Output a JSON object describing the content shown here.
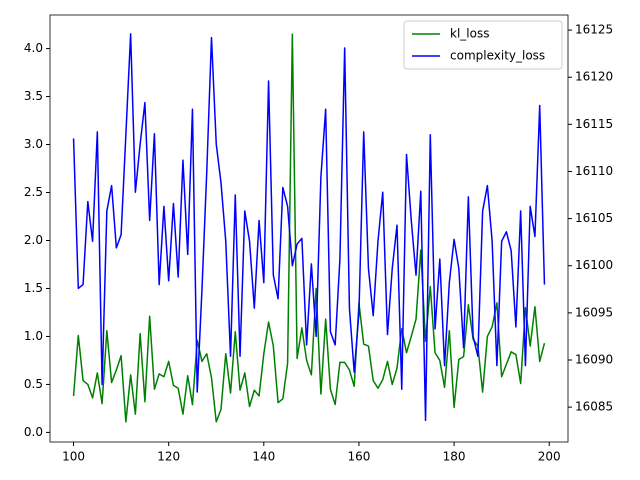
{
  "chart_data": {
    "type": "line",
    "x": [
      100,
      101,
      102,
      103,
      104,
      105,
      106,
      107,
      108,
      109,
      110,
      111,
      112,
      113,
      114,
      115,
      116,
      117,
      118,
      119,
      120,
      121,
      122,
      123,
      124,
      125,
      126,
      127,
      128,
      129,
      130,
      131,
      132,
      133,
      134,
      135,
      136,
      137,
      138,
      139,
      140,
      141,
      142,
      143,
      144,
      145,
      146,
      147,
      148,
      149,
      150,
      151,
      152,
      153,
      154,
      155,
      156,
      157,
      158,
      159,
      160,
      161,
      162,
      163,
      164,
      165,
      166,
      167,
      168,
      169,
      170,
      171,
      172,
      173,
      174,
      175,
      176,
      177,
      178,
      179,
      180,
      181,
      182,
      183,
      184,
      185,
      186,
      187,
      188,
      189,
      190,
      191,
      192,
      193,
      194,
      195,
      196,
      197,
      198,
      199
    ],
    "series": [
      {
        "name": "kl_loss",
        "color": "#008000",
        "values": [
          0.38,
          1.01,
          0.54,
          0.5,
          0.36,
          0.62,
          0.3,
          1.06,
          0.52,
          0.65,
          0.8,
          0.11,
          0.6,
          0.19,
          1.03,
          0.32,
          1.21,
          0.45,
          0.61,
          0.58,
          0.74,
          0.49,
          0.46,
          0.19,
          0.59,
          0.29,
          0.96,
          0.74,
          0.82,
          0.57,
          0.11,
          0.24,
          0.82,
          0.41,
          1.05,
          0.44,
          0.62,
          0.27,
          0.44,
          0.38,
          0.82,
          1.15,
          0.9,
          0.31,
          0.35,
          0.72,
          4.15,
          0.77,
          1.09,
          0.75,
          0.6,
          1.5,
          0.4,
          1.18,
          0.45,
          0.29,
          0.73,
          0.73,
          0.65,
          0.48,
          1.35,
          0.92,
          0.9,
          0.54,
          0.46,
          0.55,
          0.74,
          0.5,
          0.67,
          1.08,
          0.83,
          1.0,
          1.18,
          1.9,
          0.95,
          1.52,
          0.83,
          0.75,
          0.47,
          1.06,
          0.26,
          0.76,
          0.79,
          1.33,
          0.97,
          0.9,
          0.42,
          1.0,
          1.1,
          1.35,
          0.58,
          0.71,
          0.84,
          0.81,
          0.51,
          1.3,
          0.9,
          1.31,
          0.74,
          0.93
        ]
      },
      {
        "name": "complexity_loss",
        "color": "#0000ff",
        "axis": "y2",
        "values": [
          16113.5,
          16097.6,
          16098,
          16106.8,
          16102.6,
          16114.2,
          16087.4,
          16105.8,
          16108.5,
          16101.9,
          16103.3,
          16113.9,
          16124.6,
          16107.8,
          16112.9,
          16117.3,
          16104.8,
          16114,
          16098,
          16106.3,
          16098.4,
          16106.6,
          16098.8,
          16111.2,
          16101.2,
          16116.6,
          16086.6,
          16097.5,
          16109.9,
          16124.2,
          16112.9,
          16108.8,
          16102.6,
          16090.4,
          16107.5,
          16090.4,
          16105.8,
          16102.6,
          16095.5,
          16104.8,
          16098.2,
          16119.6,
          16099,
          16096.5,
          16108.3,
          16106.3,
          16100,
          16102.3,
          16102.9,
          16091.6,
          16100.2,
          16092.5,
          16109.4,
          16116.6,
          16093,
          16091.6,
          16100.7,
          16123.1,
          16095.5,
          16088.7,
          16095,
          16114.2,
          16099.7,
          16094.7,
          16102.6,
          16107.8,
          16092.7,
          16099.7,
          16104.3,
          16086.9,
          16111.8,
          16104.8,
          16099,
          16107.9,
          16083.6,
          16113.9,
          16093.3,
          16100.7,
          16089.4,
          16098.2,
          16102.8,
          16099.7,
          16091.3,
          16107.3,
          16092.5,
          16090.4,
          16105.8,
          16108.5,
          16102.6,
          16089.4,
          16102.6,
          16103.6,
          16101.6,
          16093.5,
          16105.8,
          16089.4,
          16106.3,
          16103.1,
          16117,
          16098
        ]
      }
    ],
    "xlim": [
      95.05,
      203.95
    ],
    "xticks": [
      100,
      120,
      140,
      160,
      180,
      200
    ],
    "ylim": [
      -0.1,
      4.35
    ],
    "yticks": [
      {
        "value": 0,
        "label": "0.0"
      },
      0.5,
      {
        "value": 1,
        "label": "1.0"
      },
      1.5,
      {
        "value": 2,
        "label": "2.0"
      },
      2.5,
      {
        "value": 3,
        "label": "3.0"
      },
      3.5,
      {
        "value": 4,
        "label": "4.0"
      }
    ],
    "y2lim": [
      16081.3,
      16126.6
    ],
    "y2ticks": [
      16085,
      16090,
      16095,
      16100,
      16105,
      16110,
      16115,
      16120,
      16125
    ],
    "legend": "upper right"
  }
}
